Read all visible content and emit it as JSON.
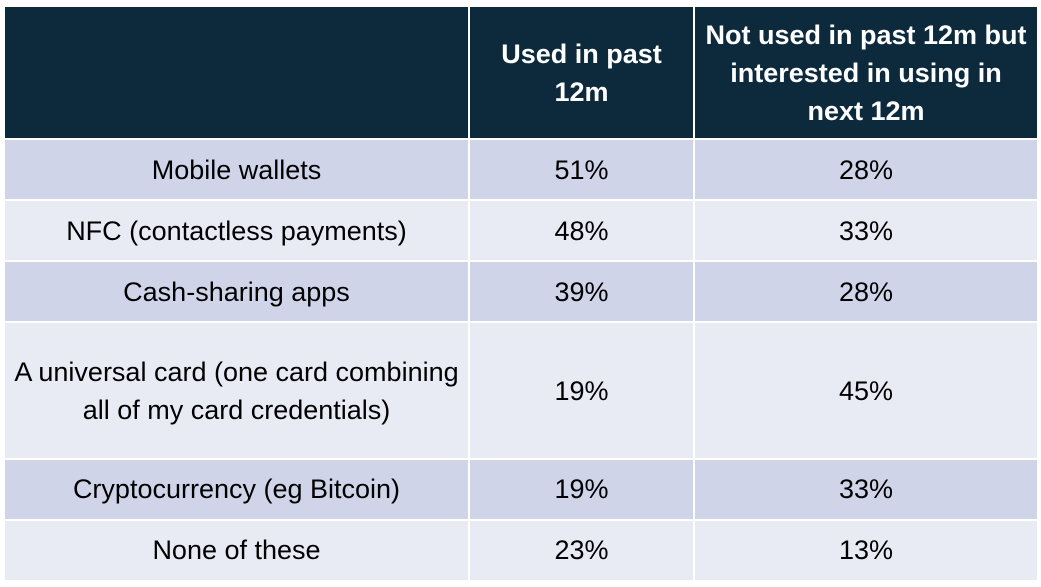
{
  "chart_data": {
    "type": "table",
    "colors": {
      "header_bg": "#0c2a3c",
      "header_text": "#ffffff",
      "row_band_dark": "#cfd4e9",
      "row_band_light": "#e8eaf4"
    },
    "columns": [
      "",
      "Used in past 12m",
      "Not used in past 12m but interested in using in next 12m"
    ],
    "rows": [
      {
        "label": "Mobile wallets",
        "used": "51%",
        "interested": "28%"
      },
      {
        "label": "NFC (contactless payments)",
        "used": "48%",
        "interested": "33%"
      },
      {
        "label": "Cash-sharing apps",
        "used": "39%",
        "interested": "28%"
      },
      {
        "label": "A universal card (one card combining all of my card credentials)",
        "used": "19%",
        "interested": "45%"
      },
      {
        "label": "Cryptocurrency (eg Bitcoin)",
        "used": "19%",
        "interested": "33%"
      },
      {
        "label": "None of these",
        "used": "23%",
        "interested": "13%"
      }
    ]
  }
}
